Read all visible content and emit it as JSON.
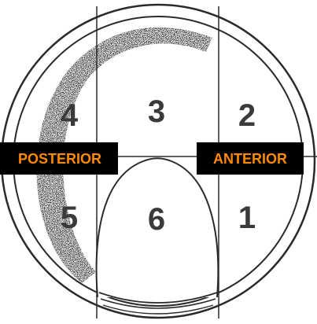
{
  "labels": {
    "posterior": "POSTERIOR",
    "anterior": "ANTERIOR"
  },
  "zones": {
    "z1": "1",
    "z2": "2",
    "z3": "3",
    "z4": "4",
    "z5": "5",
    "z6": "6"
  },
  "colors": {
    "label_text": "#ff8a00",
    "label_background": "#000000",
    "line": "#2a2a2a"
  }
}
